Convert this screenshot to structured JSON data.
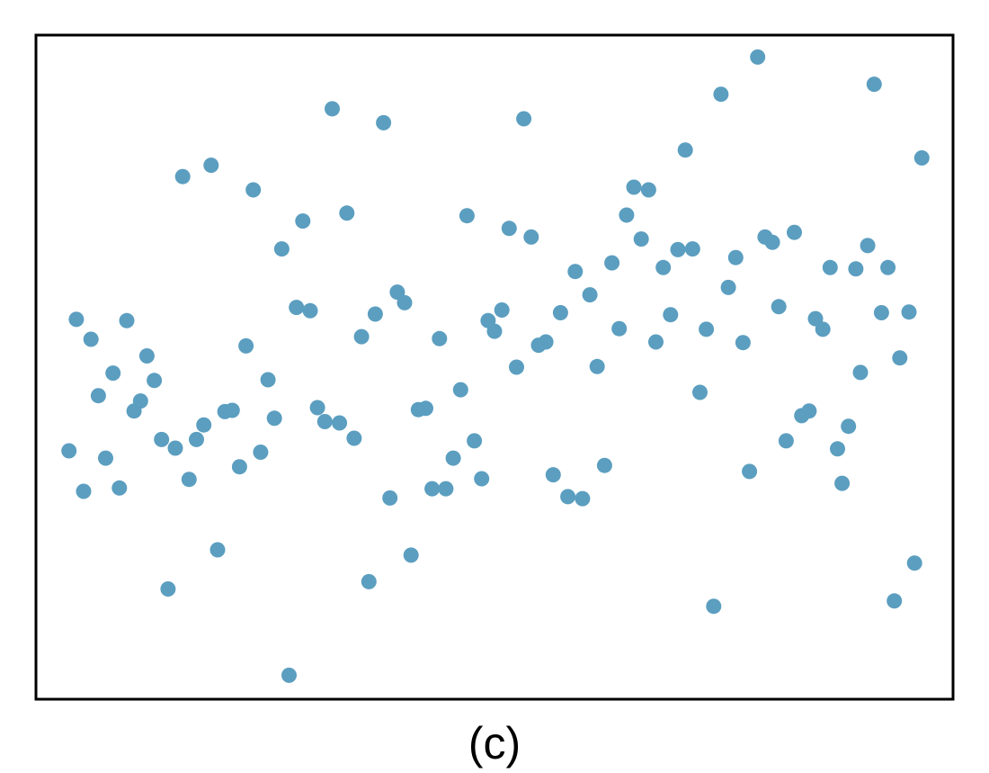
{
  "panel_label": "(c)",
  "colors": {
    "point": "#5b9ec0",
    "frame": "#000000",
    "background": "#ffffff"
  },
  "chart_data": {
    "type": "scatter",
    "title": "",
    "xlabel": "",
    "ylabel": "",
    "axes_ticks": "none",
    "grid": false,
    "xlim": [
      0,
      100
    ],
    "ylim": [
      0,
      100
    ],
    "series": [
      {
        "points": [
          [
            3.6,
            37.4
          ],
          [
            4.4,
            57.2
          ],
          [
            5.2,
            31.3
          ],
          [
            6.0,
            54.2
          ],
          [
            6.8,
            45.7
          ],
          [
            7.6,
            36.3
          ],
          [
            8.4,
            49.1
          ],
          [
            9.1,
            31.8
          ],
          [
            9.9,
            57.0
          ],
          [
            10.7,
            43.4
          ],
          [
            11.4,
            44.9
          ],
          [
            12.1,
            51.7
          ],
          [
            12.9,
            48.0
          ],
          [
            13.7,
            39.1
          ],
          [
            14.4,
            16.6
          ],
          [
            15.2,
            37.8
          ],
          [
            16.0,
            78.7
          ],
          [
            16.7,
            33.1
          ],
          [
            17.5,
            39.1
          ],
          [
            18.3,
            41.3
          ],
          [
            19.1,
            80.4
          ],
          [
            19.8,
            22.5
          ],
          [
            20.6,
            43.3
          ],
          [
            21.4,
            43.5
          ],
          [
            22.2,
            35.0
          ],
          [
            22.9,
            53.2
          ],
          [
            23.7,
            76.7
          ],
          [
            24.5,
            37.2
          ],
          [
            25.3,
            48.1
          ],
          [
            26.0,
            42.3
          ],
          [
            26.8,
            67.8
          ],
          [
            27.6,
            3.6
          ],
          [
            28.4,
            59.0
          ],
          [
            29.1,
            72.0
          ],
          [
            29.9,
            58.5
          ],
          [
            30.7,
            43.9
          ],
          [
            31.5,
            41.8
          ],
          [
            32.3,
            88.9
          ],
          [
            33.1,
            41.6
          ],
          [
            33.9,
            73.2
          ],
          [
            34.7,
            39.3
          ],
          [
            35.5,
            54.6
          ],
          [
            36.3,
            17.7
          ],
          [
            37.0,
            58.0
          ],
          [
            37.9,
            86.8
          ],
          [
            38.6,
            30.3
          ],
          [
            39.4,
            61.3
          ],
          [
            40.2,
            59.7
          ],
          [
            40.9,
            21.7
          ],
          [
            41.7,
            43.6
          ],
          [
            42.5,
            43.8
          ],
          [
            43.2,
            31.7
          ],
          [
            44.0,
            54.3
          ],
          [
            44.7,
            31.7
          ],
          [
            45.5,
            36.3
          ],
          [
            46.3,
            46.6
          ],
          [
            47.0,
            72.8
          ],
          [
            47.8,
            38.9
          ],
          [
            48.6,
            33.2
          ],
          [
            49.3,
            57.0
          ],
          [
            50.0,
            55.4
          ],
          [
            50.8,
            58.6
          ],
          [
            51.6,
            70.9
          ],
          [
            52.4,
            50.0
          ],
          [
            53.2,
            87.4
          ],
          [
            54.0,
            69.6
          ],
          [
            54.8,
            53.3
          ],
          [
            55.6,
            53.8
          ],
          [
            56.4,
            33.8
          ],
          [
            57.2,
            58.2
          ],
          [
            58.0,
            30.5
          ],
          [
            58.8,
            64.4
          ],
          [
            59.6,
            30.2
          ],
          [
            60.4,
            60.9
          ],
          [
            61.2,
            50.1
          ],
          [
            62.0,
            35.2
          ],
          [
            62.8,
            65.7
          ],
          [
            63.6,
            55.8
          ],
          [
            64.4,
            72.9
          ],
          [
            65.2,
            77.1
          ],
          [
            66.0,
            69.3
          ],
          [
            66.8,
            76.7
          ],
          [
            67.6,
            53.8
          ],
          [
            68.4,
            65.0
          ],
          [
            69.2,
            57.9
          ],
          [
            70.0,
            67.7
          ],
          [
            70.8,
            82.7
          ],
          [
            71.6,
            67.8
          ],
          [
            72.4,
            46.2
          ],
          [
            73.1,
            55.7
          ],
          [
            73.9,
            14.0
          ],
          [
            74.7,
            91.1
          ],
          [
            75.5,
            62.0
          ],
          [
            76.3,
            66.5
          ],
          [
            77.1,
            53.7
          ],
          [
            77.8,
            34.3
          ],
          [
            78.7,
            96.7
          ],
          [
            79.5,
            69.6
          ],
          [
            80.3,
            68.8
          ],
          [
            81.0,
            59.1
          ],
          [
            81.8,
            38.9
          ],
          [
            82.7,
            70.3
          ],
          [
            83.5,
            42.7
          ],
          [
            84.3,
            43.4
          ],
          [
            85.0,
            57.3
          ],
          [
            85.8,
            55.7
          ],
          [
            86.6,
            65.0
          ],
          [
            87.4,
            37.7
          ],
          [
            87.9,
            32.5
          ],
          [
            88.6,
            41.1
          ],
          [
            89.4,
            64.8
          ],
          [
            89.9,
            49.2
          ],
          [
            90.7,
            68.3
          ],
          [
            91.4,
            92.6
          ],
          [
            92.2,
            58.2
          ],
          [
            92.9,
            65.0
          ],
          [
            93.6,
            14.8
          ],
          [
            94.2,
            51.4
          ],
          [
            95.2,
            58.3
          ],
          [
            95.8,
            20.5
          ],
          [
            96.6,
            81.5
          ]
        ]
      }
    ]
  }
}
